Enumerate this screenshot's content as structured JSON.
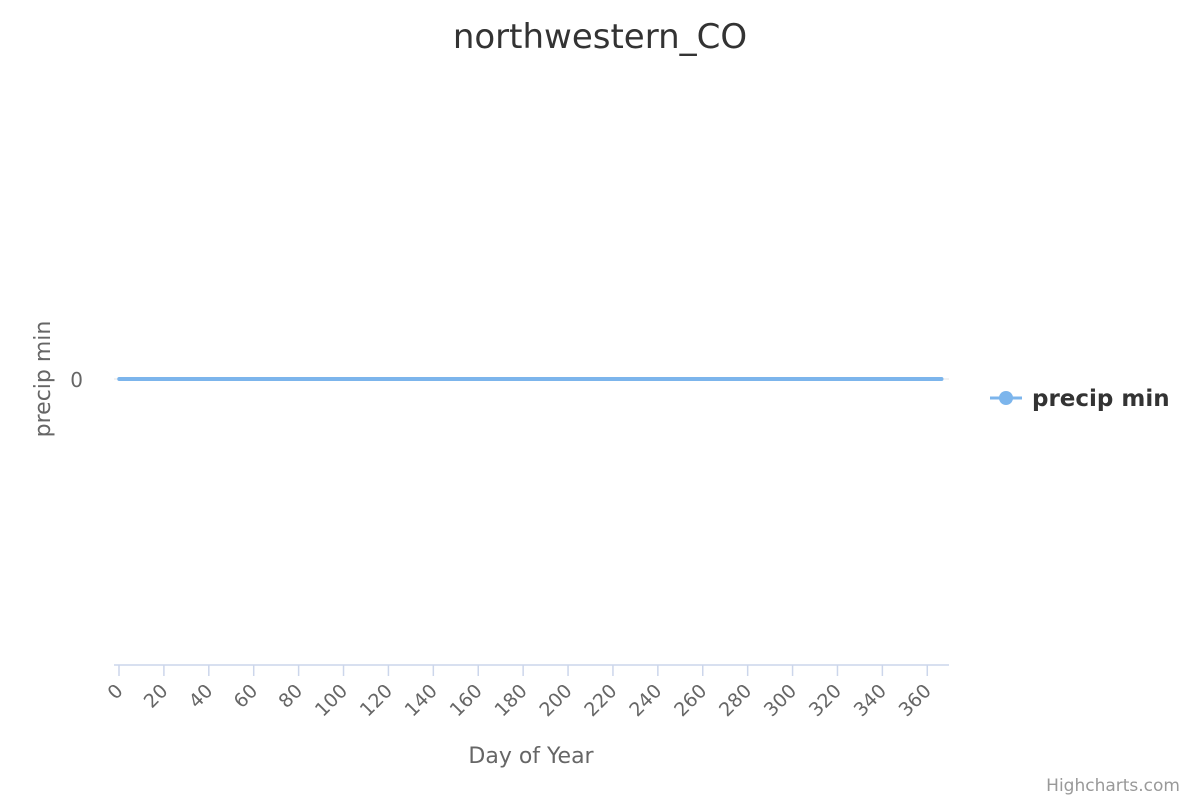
{
  "chart_data": {
    "type": "line",
    "title": "northwestern_CO",
    "xlabel": "Day of Year",
    "ylabel": "precip min",
    "xlim": [
      0,
      365
    ],
    "x_ticks": [
      0,
      20,
      40,
      60,
      80,
      100,
      120,
      140,
      160,
      180,
      200,
      220,
      240,
      260,
      280,
      300,
      320,
      340,
      360
    ],
    "y_ticks": [
      0
    ],
    "grid": false,
    "legend_position": "right",
    "series": [
      {
        "name": "precip min",
        "color": "#7cb5ec",
        "x_range": [
          1,
          365
        ],
        "constant_value": 0
      }
    ]
  },
  "credits": "Highcharts.com"
}
